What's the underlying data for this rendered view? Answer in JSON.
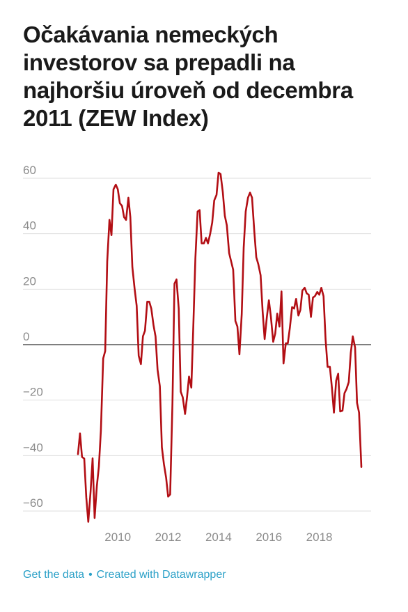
{
  "chart_data": {
    "type": "line",
    "title": "Očakávania nemeckých investorov sa prepadli na najhoršiu úroveň od decembra 2011 (ZEW Index)",
    "ylim": [
      -65,
      65
    ],
    "xlim": [
      2008.0,
      2019.95
    ],
    "y_ticks": [
      60,
      40,
      20,
      0,
      -20,
      -40,
      -60
    ],
    "y_tick_labels": [
      "60",
      "40",
      "20",
      "0",
      "−20",
      "−40",
      "−60"
    ],
    "x_ticks": [
      2010,
      2012,
      2014,
      2016,
      2018
    ],
    "x_tick_labels": [
      "2010",
      "2012",
      "2014",
      "2016",
      "2018"
    ],
    "grid": true,
    "color": "#b20e14",
    "series": [
      {
        "values": [
          [
            2008.42,
            -39.5
          ],
          [
            2008.5,
            -32.0
          ],
          [
            2008.58,
            -40.5
          ],
          [
            2008.67,
            -41.1
          ],
          [
            2008.75,
            -55.0
          ],
          [
            2008.83,
            -63.9
          ],
          [
            2008.92,
            -53.0
          ],
          [
            2009.0,
            -41.0
          ],
          [
            2009.08,
            -62.5
          ],
          [
            2009.17,
            -51.0
          ],
          [
            2009.25,
            -44.0
          ],
          [
            2009.33,
            -31.0
          ],
          [
            2009.42,
            -5.0
          ],
          [
            2009.5,
            -2.3
          ],
          [
            2009.58,
            30.0
          ],
          [
            2009.67,
            45.0
          ],
          [
            2009.75,
            39.5
          ],
          [
            2009.83,
            56.0
          ],
          [
            2009.92,
            57.7
          ],
          [
            2010.0,
            56.0
          ],
          [
            2010.08,
            51.0
          ],
          [
            2010.17,
            50.0
          ],
          [
            2010.25,
            46.0
          ],
          [
            2010.33,
            45.0
          ],
          [
            2010.42,
            53.0
          ],
          [
            2010.5,
            46.0
          ],
          [
            2010.58,
            28.0
          ],
          [
            2010.67,
            20.0
          ],
          [
            2010.75,
            14.0
          ],
          [
            2010.83,
            -4.0
          ],
          [
            2010.92,
            -7.0
          ],
          [
            2011.0,
            3.0
          ],
          [
            2011.08,
            5.0
          ],
          [
            2011.17,
            15.5
          ],
          [
            2011.25,
            15.5
          ],
          [
            2011.33,
            13.0
          ],
          [
            2011.42,
            7.0
          ],
          [
            2011.5,
            3.0
          ],
          [
            2011.58,
            -9.0
          ],
          [
            2011.67,
            -15.0
          ],
          [
            2011.75,
            -37.0
          ],
          [
            2011.83,
            -43.0
          ],
          [
            2011.92,
            -48.0
          ],
          [
            2012.0,
            -54.8
          ],
          [
            2012.08,
            -54.0
          ],
          [
            2012.17,
            -21.0
          ],
          [
            2012.25,
            22.0
          ],
          [
            2012.33,
            23.5
          ],
          [
            2012.42,
            13.0
          ],
          [
            2012.5,
            -17.0
          ],
          [
            2012.58,
            -19.0
          ],
          [
            2012.67,
            -25.0
          ],
          [
            2012.75,
            -19.0
          ],
          [
            2012.83,
            -11.5
          ],
          [
            2012.92,
            -15.5
          ],
          [
            2013.0,
            7.0
          ],
          [
            2013.08,
            31.0
          ],
          [
            2013.17,
            48.0
          ],
          [
            2013.25,
            48.5
          ],
          [
            2013.33,
            36.5
          ],
          [
            2013.42,
            36.5
          ],
          [
            2013.5,
            38.5
          ],
          [
            2013.58,
            36.5
          ],
          [
            2013.67,
            40.0
          ],
          [
            2013.75,
            44.0
          ],
          [
            2013.83,
            52.0
          ],
          [
            2013.92,
            54.0
          ],
          [
            2014.0,
            62.0
          ],
          [
            2014.08,
            61.5
          ],
          [
            2014.17,
            55.0
          ],
          [
            2014.25,
            46.5
          ],
          [
            2014.33,
            43.0
          ],
          [
            2014.42,
            33.0
          ],
          [
            2014.5,
            30.0
          ],
          [
            2014.58,
            27.0
          ],
          [
            2014.67,
            8.5
          ],
          [
            2014.75,
            6.5
          ],
          [
            2014.83,
            -3.5
          ],
          [
            2014.92,
            11.0
          ],
          [
            2015.0,
            34.9
          ],
          [
            2015.08,
            48.0
          ],
          [
            2015.17,
            53.0
          ],
          [
            2015.25,
            54.8
          ],
          [
            2015.33,
            53.0
          ],
          [
            2015.42,
            41.0
          ],
          [
            2015.5,
            31.5
          ],
          [
            2015.58,
            29.0
          ],
          [
            2015.67,
            25.0
          ],
          [
            2015.75,
            12.0
          ],
          [
            2015.83,
            2.0
          ],
          [
            2015.92,
            10.0
          ],
          [
            2016.0,
            16.0
          ],
          [
            2016.08,
            10.0
          ],
          [
            2016.17,
            1.0
          ],
          [
            2016.25,
            4.0
          ],
          [
            2016.33,
            11.2
          ],
          [
            2016.42,
            6.5
          ],
          [
            2016.5,
            19.2
          ],
          [
            2016.58,
            -6.8
          ],
          [
            2016.67,
            0.5
          ],
          [
            2016.75,
            0.5
          ],
          [
            2016.83,
            6.0
          ],
          [
            2016.92,
            13.5
          ],
          [
            2017.0,
            13.0
          ],
          [
            2017.08,
            16.5
          ],
          [
            2017.17,
            10.5
          ],
          [
            2017.25,
            12.5
          ],
          [
            2017.33,
            19.5
          ],
          [
            2017.42,
            20.5
          ],
          [
            2017.5,
            18.5
          ],
          [
            2017.58,
            18.0
          ],
          [
            2017.67,
            10.0
          ],
          [
            2017.75,
            17.0
          ],
          [
            2017.83,
            17.5
          ],
          [
            2017.92,
            19.0
          ],
          [
            2018.0,
            18.0
          ],
          [
            2018.08,
            20.5
          ],
          [
            2018.17,
            17.5
          ],
          [
            2018.25,
            2.0
          ],
          [
            2018.33,
            -8.0
          ],
          [
            2018.42,
            -8.0
          ],
          [
            2018.5,
            -15.5
          ],
          [
            2018.58,
            -24.5
          ],
          [
            2018.67,
            -13.0
          ],
          [
            2018.75,
            -10.5
          ],
          [
            2018.83,
            -24.1
          ],
          [
            2018.92,
            -23.8
          ],
          [
            2019.0,
            -17.5
          ],
          [
            2019.08,
            -16.0
          ],
          [
            2019.17,
            -13.5
          ],
          [
            2019.25,
            -3.0
          ],
          [
            2019.33,
            3.0
          ],
          [
            2019.42,
            -1.0
          ],
          [
            2019.5,
            -21.0
          ],
          [
            2019.58,
            -24.5
          ],
          [
            2019.67,
            -44.1
          ]
        ]
      }
    ]
  },
  "footer": {
    "get_data": "Get the data",
    "separator": "•",
    "created_with": "Created with Datawrapper"
  }
}
